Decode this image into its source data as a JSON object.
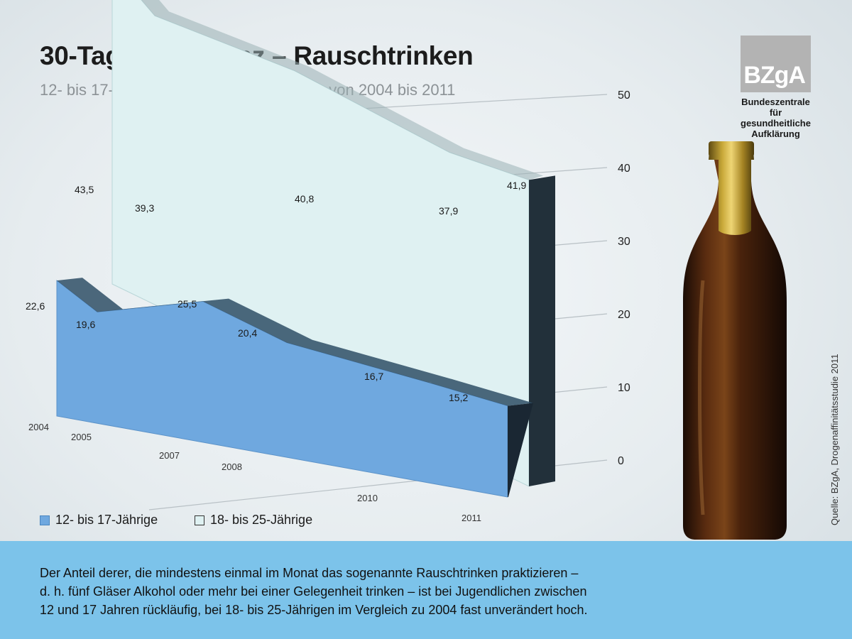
{
  "title": "30-Tage-Prävalenz – Rauschtrinken",
  "subtitle": "12- bis 17-Jährige und 18- bis 25-Jährige von 2004 bis 2011",
  "logo": {
    "text": "BZgA",
    "org_lines": [
      "Bundeszentrale",
      "für",
      "gesundheitliche",
      "Aufklärung"
    ]
  },
  "source": "Quelle: BZgA, Drogenaffinitätsstudie 2011",
  "legend": [
    {
      "label": "12- bis 17-Jährige",
      "color": "#6fa8df"
    },
    {
      "label": "18- bis 25-Jährige",
      "color": "#dff1f2"
    }
  ],
  "footer_text_lines": [
    "Der Anteil derer, die mindestens einmal im Monat das sogenannte Rauschtrinken praktizieren –",
    "d. h. fünf Gläser Alkohol oder mehr bei einer Gelegenheit trinken – ist bei Jugendlichen zwischen",
    "12 und 17 Jahren rückläufig, bei 18- bis 25-Jährigen im Vergleich zu 2004 fast unverändert hoch."
  ],
  "colors": {
    "band": "#7cc3ea",
    "series_young": "#6fa8df",
    "series_adult": "#dff1f2",
    "shadow": "#22303a"
  },
  "chart_data": {
    "type": "area",
    "title": "30-Tage-Prävalenz – Rauschtrinken",
    "subtitle": "12- bis 17-Jährige und 18- bis 25-Jährige von 2004 bis 2011",
    "x": [
      "2004",
      "2005",
      "2007",
      "2008",
      "2010",
      "2011"
    ],
    "series": [
      {
        "name": "12- bis 17-Jährige",
        "values": [
          22.6,
          19.6,
          25.5,
          20.4,
          16.7,
          15.2
        ],
        "labels": [
          "22,6",
          "19,6",
          "25,5",
          "20,4",
          "16,7",
          "15,2"
        ]
      },
      {
        "name": "18- bis 25-Jährige",
        "values": [
          43.5,
          39.3,
          null,
          40.8,
          37.9,
          41.9
        ],
        "labels": [
          "43,5",
          "39,3",
          "",
          "40,8",
          "37,9",
          "41,9"
        ]
      }
    ],
    "y_ticks": [
      "0",
      "10",
      "20",
      "30",
      "40",
      "50"
    ],
    "ylim": [
      0,
      50
    ],
    "grid": true,
    "legend_position": "bottom-left",
    "perspective": "3d"
  }
}
